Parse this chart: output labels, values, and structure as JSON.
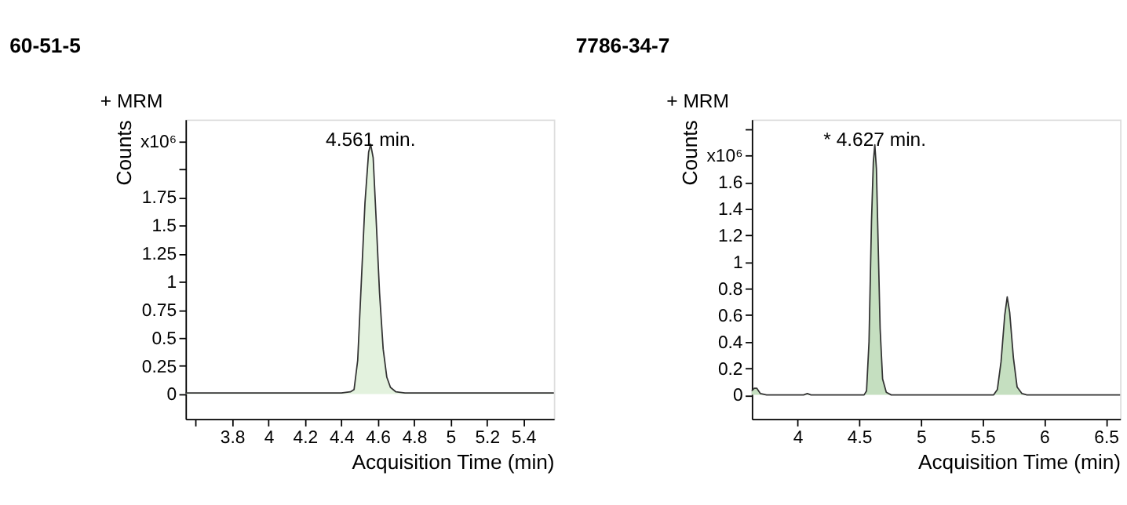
{
  "chart_data": [
    {
      "type": "area",
      "title": "60-51-5",
      "xlabel": "Acquisition Time (min)",
      "ylabel": "Counts",
      "annotations": [
        "+ MRM",
        {
          "text": "4.561 min.",
          "x": 4.561,
          "y": 2.22
        }
      ],
      "xlim": [
        3.544,
        5.568
      ],
      "xticks": [
        {
          "value": 3.6,
          "label": null
        },
        3.8,
        4,
        4.2,
        4.4,
        4.6,
        4.8,
        5,
        5.2,
        5.4
      ],
      "ylim": [
        -0.22,
        2.44
      ],
      "yticks": [
        0,
        0.25,
        0.5,
        0.75,
        1,
        1.25,
        1.5,
        1.75,
        {
          "value": 2,
          "label": null
        },
        {
          "value": 2.25,
          "label": "x10⁶"
        }
      ],
      "grid": false,
      "series": [
        {
          "color": "#e3f2de",
          "x": [
            3.544,
            4.4,
            4.45,
            4.47,
            4.49,
            4.51,
            4.53,
            4.55,
            4.561,
            4.575,
            4.59,
            4.61,
            4.63,
            4.65,
            4.67,
            4.7,
            4.75,
            5.568
          ],
          "values": [
            0.01,
            0.01,
            0.02,
            0.04,
            0.3,
            1.0,
            1.7,
            2.15,
            2.22,
            2.1,
            1.6,
            0.9,
            0.4,
            0.15,
            0.06,
            0.02,
            0.01,
            0.01
          ]
        }
      ]
    },
    {
      "type": "area",
      "title": "7786-34-7",
      "xlabel": "Acquisition Time (min)",
      "ylabel": "Counts",
      "annotations": [
        "+ MRM",
        {
          "text": "* 4.627 min.",
          "x": 4.627,
          "y": 1.88
        }
      ],
      "xlim": [
        3.63,
        6.615
      ],
      "xticks": [
        4,
        4.5,
        5,
        5.5,
        6,
        6.5
      ],
      "ylim": [
        -0.18,
        2.07
      ],
      "yticks": [
        0,
        0.2,
        0.4,
        0.6,
        0.8,
        1,
        1.2,
        1.4,
        1.6,
        {
          "value": 1.8,
          "label": "x10⁶"
        },
        {
          "value": 2,
          "label": null
        }
      ],
      "grid": false,
      "series": [
        {
          "color": "#c5dfc0",
          "x": [
            3.63,
            3.65,
            3.67,
            3.7,
            3.75,
            4.05,
            4.08,
            4.11,
            4.54,
            4.56,
            4.58,
            4.6,
            4.615,
            4.627,
            4.64,
            4.655,
            4.67,
            4.69,
            4.72,
            4.76,
            5.59,
            5.62,
            5.65,
            5.68,
            5.7,
            5.72,
            5.75,
            5.78,
            5.82,
            5.86,
            6.615
          ],
          "values": [
            0.03,
            0.05,
            0.05,
            0.01,
            0,
            0,
            0.01,
            0,
            0,
            0.03,
            0.4,
            1.3,
            1.75,
            1.88,
            1.7,
            1.1,
            0.5,
            0.12,
            0.02,
            0,
            0,
            0.04,
            0.25,
            0.6,
            0.737,
            0.62,
            0.28,
            0.06,
            0.01,
            0,
            0
          ]
        }
      ]
    }
  ]
}
